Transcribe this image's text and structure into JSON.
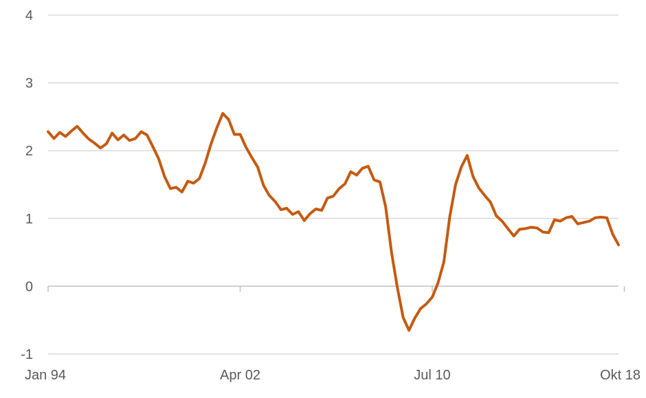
{
  "chart_data": {
    "type": "line",
    "title": "",
    "xlabel": "",
    "ylabel": "",
    "ylim": [
      -1,
      4
    ],
    "y_ticks": [
      "-1",
      "0",
      "1",
      "2",
      "3",
      "4"
    ],
    "x_tick_labels": [
      "Jan 94",
      "Apr 02",
      "Jul 10",
      "Okt 18"
    ],
    "x_tick_indices": [
      0,
      33,
      66,
      99
    ],
    "grid": true,
    "legend": "none",
    "colors": {
      "line": "#C55A11",
      "grid": "#c8c8c8",
      "text": "#595959"
    },
    "series": [
      {
        "values": [
          2.28,
          2.18,
          2.27,
          2.21,
          2.29,
          2.36,
          2.26,
          2.17,
          2.11,
          2.04,
          2.1,
          2.26,
          2.16,
          2.23,
          2.15,
          2.18,
          2.28,
          2.23,
          2.06,
          1.88,
          1.62,
          1.44,
          1.46,
          1.39,
          1.55,
          1.52,
          1.59,
          1.82,
          2.1,
          2.34,
          2.55,
          2.46,
          2.24,
          2.24,
          2.05,
          1.9,
          1.76,
          1.49,
          1.34,
          1.25,
          1.13,
          1.15,
          1.06,
          1.1,
          0.97,
          1.07,
          1.14,
          1.12,
          1.3,
          1.33,
          1.44,
          1.51,
          1.69,
          1.64,
          1.74,
          1.77,
          1.57,
          1.54,
          1.17,
          0.5,
          -0.02,
          -0.46,
          -0.65,
          -0.47,
          -0.33,
          -0.26,
          -0.16,
          0.05,
          0.36,
          1.02,
          1.5,
          1.76,
          1.93,
          1.62,
          1.45,
          1.34,
          1.24,
          1.04,
          0.96,
          0.85,
          0.74,
          0.84,
          0.85,
          0.87,
          0.86,
          0.8,
          0.79,
          0.98,
          0.96,
          1.01,
          1.03,
          0.92,
          0.94,
          0.96,
          1.01,
          1.02,
          1.01,
          0.77,
          0.61
        ]
      }
    ]
  }
}
